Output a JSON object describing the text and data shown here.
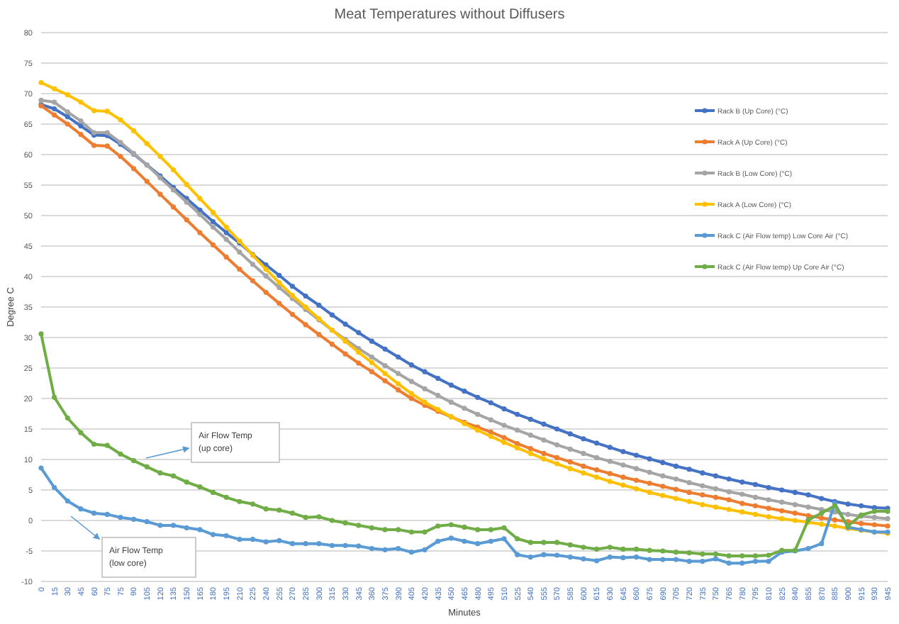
{
  "chart_data": {
    "type": "line",
    "title": "Meat Temperatures without Diffusers",
    "xlabel": "Minutes",
    "ylabel": "Degree C",
    "categories": [
      "0",
      "15",
      "30",
      "45",
      "60",
      "75",
      "75",
      "90",
      "105",
      "120",
      "135",
      "150",
      "165",
      "180",
      "195",
      "210",
      "225",
      "240",
      "255",
      "270",
      "285",
      "300",
      "315",
      "330",
      "345",
      "360",
      "375",
      "390",
      "405",
      "420",
      "435",
      "450",
      "465",
      "480",
      "495",
      "510",
      "525",
      "540",
      "555",
      "570",
      "585",
      "600",
      "615",
      "630",
      "645",
      "660",
      "675",
      "690",
      "705",
      "720",
      "735",
      "750",
      "765",
      "780",
      "795",
      "810",
      "825",
      "840",
      "855",
      "870",
      "885",
      "900",
      "915",
      "930",
      "945"
    ],
    "series": [
      {
        "name": "Rack B (Up Core) (°C)",
        "color": "#4472c4",
        "values": [
          68.2,
          67.5,
          66.2,
          64.7,
          63.2,
          63.1,
          61.7,
          60.1,
          58.3,
          56.5,
          54.6,
          52.8,
          50.9,
          49,
          47.2,
          45.5,
          43.6,
          41.9,
          40.2,
          38.4,
          36.8,
          35.3,
          33.7,
          32.2,
          30.8,
          29.4,
          28.1,
          26.8,
          25.5,
          24.4,
          23.3,
          22.2,
          21.2,
          20.2,
          19.3,
          18.3,
          17.4,
          16.6,
          15.8,
          15,
          14.2,
          13.4,
          12.7,
          12,
          11.3,
          10.7,
          10.1,
          9.5,
          8.9,
          8.4,
          7.8,
          7.3,
          6.8,
          6.3,
          5.9,
          5.4,
          5,
          4.6,
          4.2,
          3.6,
          3.1,
          2.7,
          2.4,
          2.1,
          2
        ]
      },
      {
        "name": "Rack A (Up Core) (°C)",
        "color": "#ed7d31",
        "values": [
          68,
          66.5,
          65,
          63.3,
          61.5,
          61.4,
          59.7,
          57.7,
          55.6,
          53.5,
          51.4,
          49.3,
          47.2,
          45.2,
          43.2,
          41.2,
          39.3,
          37.4,
          35.6,
          33.8,
          32.1,
          30.5,
          28.9,
          27.3,
          25.8,
          24.4,
          22.9,
          21.4,
          20,
          18.9,
          17.9,
          17,
          16.1,
          15.3,
          14.5,
          13.6,
          12.6,
          11.8,
          11,
          10.3,
          9.6,
          8.9,
          8.3,
          7.7,
          7.1,
          6.6,
          6.1,
          5.6,
          5.1,
          4.6,
          4.2,
          3.8,
          3.4,
          2.8,
          2.4,
          2,
          1.6,
          1.2,
          0.8,
          0.4,
          0.1,
          -0.2,
          -0.5,
          -0.7,
          -0.9
        ]
      },
      {
        "name": "Rack B (Low Core) (°C)",
        "color": "#a5a5a5",
        "values": [
          68.9,
          68.6,
          67,
          65.5,
          63.6,
          63.6,
          62,
          60.2,
          58.3,
          56.2,
          54.2,
          52.2,
          50.2,
          48.1,
          46.1,
          44,
          42,
          40.1,
          38.2,
          36.4,
          34.6,
          32.9,
          31.2,
          29.7,
          28.2,
          26.8,
          25.4,
          24.1,
          22.8,
          21.6,
          20.5,
          19.4,
          18.4,
          17.4,
          16.5,
          15.6,
          14.8,
          14,
          13.2,
          12.4,
          11.7,
          11,
          10.3,
          9.7,
          9.1,
          8.5,
          7.9,
          7.3,
          6.8,
          6.2,
          5.7,
          5.2,
          4.7,
          4.3,
          3.8,
          3.4,
          3,
          2.6,
          2.2,
          1.8,
          1.4,
          1,
          0.7,
          0.5,
          0.3
        ]
      },
      {
        "name": "Rack A (Low Core) (°C)",
        "color": "#ffc000",
        "values": [
          71.8,
          70.8,
          69.8,
          68.6,
          67.2,
          67.1,
          65.7,
          63.9,
          61.8,
          59.7,
          57.5,
          55.1,
          52.8,
          50.5,
          48.1,
          45.8,
          43.5,
          41.2,
          39,
          36.9,
          35,
          33.1,
          31.2,
          29.4,
          27.6,
          25.9,
          24.1,
          22.4,
          20.8,
          19.4,
          18.2,
          17,
          15.9,
          14.8,
          13.8,
          12.8,
          11.9,
          11,
          10.1,
          9.3,
          8.5,
          7.8,
          7.1,
          6.4,
          5.8,
          5.2,
          4.6,
          4.1,
          3.6,
          3.1,
          2.6,
          2.2,
          1.8,
          1.4,
          1,
          0.6,
          0.3,
          0,
          -0.3,
          -0.6,
          -0.9,
          -1.3,
          -1.6,
          -1.9,
          -2.1
        ]
      },
      {
        "name": "Rack C (Air Flow temp) Low Core Air (°C)",
        "color": "#5b9bd5",
        "values": [
          8.6,
          5.4,
          3.2,
          1.9,
          1.2,
          1,
          0.5,
          0.2,
          -0.2,
          -0.8,
          -0.8,
          -1.2,
          -1.5,
          -2.3,
          -2.5,
          -3.1,
          -3.1,
          -3.5,
          -3.3,
          -3.8,
          -3.8,
          -3.8,
          -4.1,
          -4.1,
          -4.2,
          -4.6,
          -4.8,
          -4.6,
          -5.2,
          -4.8,
          -3.4,
          -2.9,
          -3.4,
          -3.8,
          -3.4,
          -3,
          -5.6,
          -6,
          -5.6,
          -5.7,
          -6,
          -6.3,
          -6.6,
          -6,
          -6.1,
          -6,
          -6.4,
          -6.4,
          -6.4,
          -6.7,
          -6.7,
          -6.3,
          -7,
          -7,
          -6.7,
          -6.7,
          -5.2,
          -5,
          -4.6,
          -3.8,
          2.8,
          -1.1,
          -1.5,
          -1.9,
          -1.9
        ]
      },
      {
        "name": "Rack C (Air Flow temp) Up Core Air (°C)",
        "color": "#70ad47",
        "values": [
          30.6,
          20.2,
          16.8,
          14.4,
          12.5,
          12.3,
          10.9,
          9.8,
          8.8,
          7.8,
          7.3,
          6.3,
          5.5,
          4.6,
          3.8,
          3.1,
          2.7,
          1.9,
          1.7,
          1.2,
          0.5,
          0.6,
          0,
          -0.4,
          -0.8,
          -1.2,
          -1.5,
          -1.5,
          -1.9,
          -1.9,
          -0.9,
          -0.7,
          -1.1,
          -1.5,
          -1.5,
          -1.2,
          -3,
          -3.6,
          -3.6,
          -3.6,
          -4,
          -4.4,
          -4.7,
          -4.4,
          -4.7,
          -4.7,
          -4.9,
          -5,
          -5.2,
          -5.3,
          -5.5,
          -5.5,
          -5.8,
          -5.8,
          -5.8,
          -5.7,
          -4.9,
          -4.9,
          0.1,
          1.2,
          2.4,
          -0.9,
          0.9,
          1.5,
          1.5
        ]
      }
    ],
    "ylim": [
      -10,
      80
    ],
    "yticks": [
      -10,
      -5,
      0,
      5,
      10,
      15,
      20,
      25,
      30,
      35,
      40,
      45,
      50,
      55,
      60,
      65,
      70,
      75,
      80
    ],
    "grid": "y",
    "legend": "right",
    "marker": "circle",
    "line_style": "solid",
    "annotations": [
      "Air Flow Temp\n(up core)",
      "Air Flow Temp\n(low core)"
    ]
  }
}
